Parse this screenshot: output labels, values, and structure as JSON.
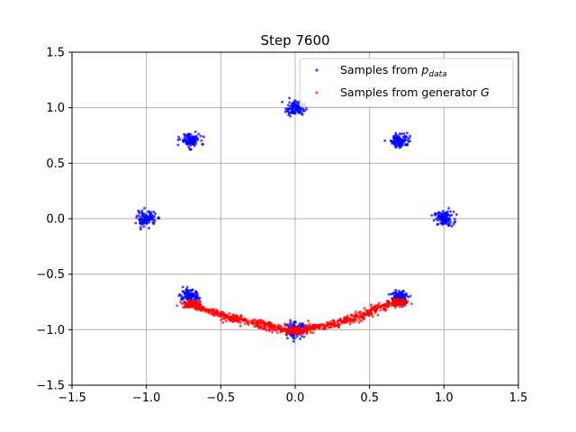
{
  "chart_data": {
    "type": "scatter",
    "title": "Step 7600",
    "xlabel": "",
    "ylabel": "",
    "xlim": [
      -1.5,
      1.5
    ],
    "ylim": [
      -1.5,
      1.5
    ],
    "xticks": [
      -1.5,
      -1.0,
      -0.5,
      0.0,
      0.5,
      1.0,
      1.5
    ],
    "yticks": [
      -1.5,
      -1.0,
      -0.5,
      0.0,
      0.5,
      1.0,
      1.5
    ],
    "xtick_labels": [
      "−1.5",
      "−1.0",
      "−0.5",
      "0.0",
      "0.5",
      "1.0",
      "1.5"
    ],
    "ytick_labels": [
      "−1.5",
      "−1.0",
      "−0.5",
      "0.0",
      "0.5",
      "1.0",
      "1.5"
    ],
    "grid": true,
    "legend_position": "top-right",
    "series": [
      {
        "name": "Samples from p_data",
        "legend_main": "Samples from ",
        "legend_sym": "p",
        "legend_sub": "data",
        "color": "#0000ff",
        "clusters": [
          {
            "center": [
              1.0,
              0.0
            ],
            "spread": 0.02
          },
          {
            "center": [
              0.707,
              0.707
            ],
            "spread": 0.02
          },
          {
            "center": [
              0.0,
              1.0
            ],
            "spread": 0.02
          },
          {
            "center": [
              -0.707,
              0.707
            ],
            "spread": 0.02
          },
          {
            "center": [
              -1.0,
              0.0
            ],
            "spread": 0.02
          },
          {
            "center": [
              -0.707,
              -0.707
            ],
            "spread": 0.02
          },
          {
            "center": [
              0.0,
              -1.0
            ],
            "spread": 0.02
          },
          {
            "center": [
              0.707,
              -0.707
            ],
            "spread": 0.02
          }
        ]
      },
      {
        "name": "Samples from generator G",
        "legend_main": "Samples from generator ",
        "legend_sym": "G",
        "color": "#ff0000",
        "arc": [
          [
            -0.7,
            -0.77
          ],
          [
            -0.6,
            -0.82
          ],
          [
            -0.5,
            -0.87
          ],
          [
            -0.4,
            -0.9
          ],
          [
            -0.3,
            -0.93
          ],
          [
            -0.2,
            -0.96
          ],
          [
            -0.1,
            -0.99
          ],
          [
            0.0,
            -1.01
          ],
          [
            0.1,
            -0.99
          ],
          [
            0.2,
            -0.97
          ],
          [
            0.3,
            -0.94
          ],
          [
            0.4,
            -0.89
          ],
          [
            0.5,
            -0.84
          ],
          [
            0.6,
            -0.79
          ],
          [
            0.7,
            -0.75
          ]
        ],
        "spread": 0.02
      }
    ]
  }
}
